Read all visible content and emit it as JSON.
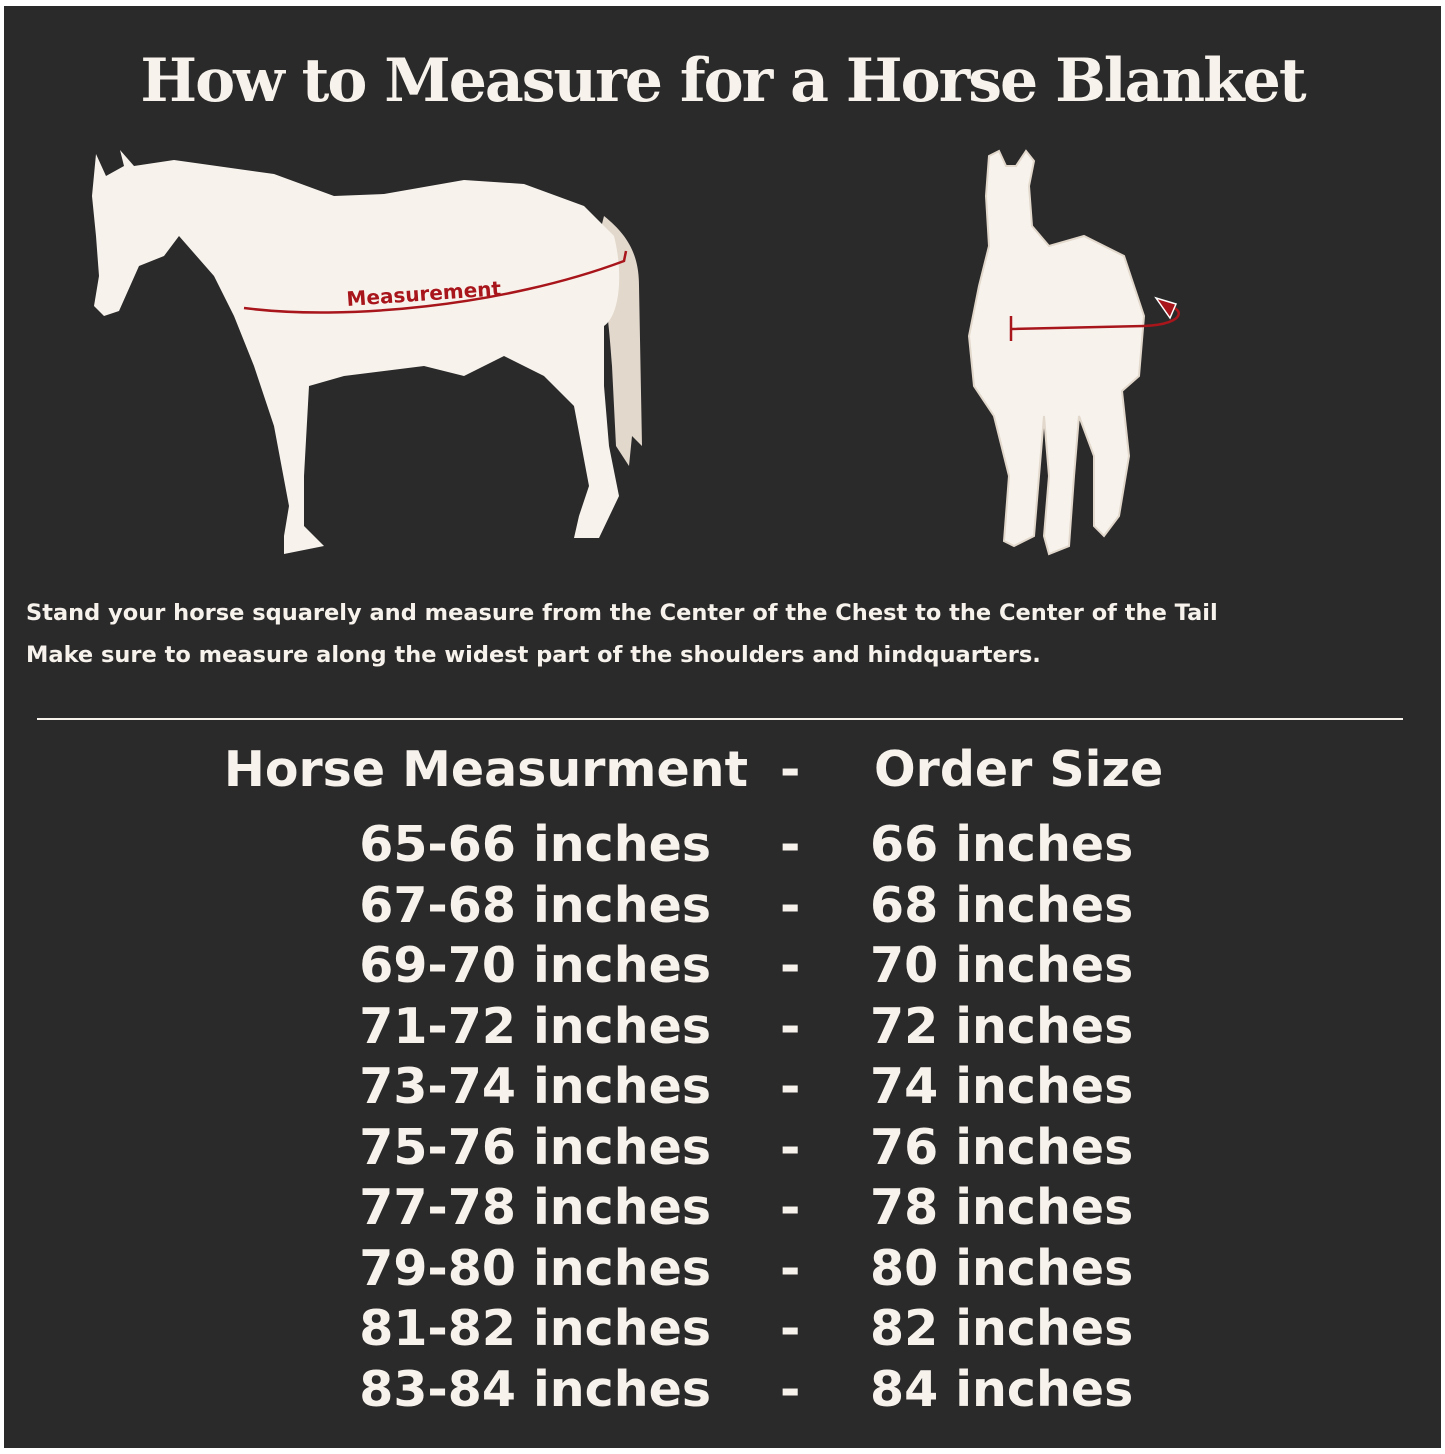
{
  "title": "How to Measure for a Horse Blanket",
  "illustrations": {
    "side_view_label": "Measurement",
    "colors": {
      "background": "#2b2a2b",
      "horse": "#f7f3ec",
      "tail": "#e2d8cc",
      "measure_line": "#a8151b"
    }
  },
  "instructions": [
    "Stand your horse squarely and measure from the Center of the Chest to the Center of the Tail",
    "Make sure to measure along the widest part of the shoulders and hindquarters."
  ],
  "table": {
    "header": {
      "left": "Horse Measurment",
      "sep": "-",
      "right": "Order Size"
    },
    "rows": [
      {
        "left": "65-66 inches",
        "sep": "-",
        "right": "66 inches"
      },
      {
        "left": "67-68 inches",
        "sep": "-",
        "right": "68 inches"
      },
      {
        "left": "69-70 inches",
        "sep": "-",
        "right": "70 inches"
      },
      {
        "left": "71-72 inches",
        "sep": "-",
        "right": "72 inches"
      },
      {
        "left": "73-74 inches",
        "sep": "-",
        "right": "74 inches"
      },
      {
        "left": "75-76 inches",
        "sep": "-",
        "right": "76 inches"
      },
      {
        "left": "77-78 inches",
        "sep": "-",
        "right": "78 inches"
      },
      {
        "left": "79-80 inches",
        "sep": "-",
        "right": "80 inches"
      },
      {
        "left": "81-82 inches",
        "sep": "-",
        "right": "82 inches"
      },
      {
        "left": "83-84 inches",
        "sep": "-",
        "right": "84 inches"
      }
    ]
  }
}
